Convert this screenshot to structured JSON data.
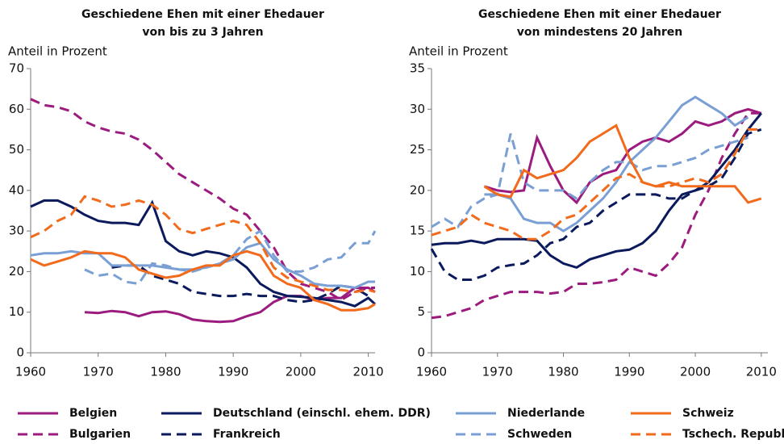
{
  "chart_data": [
    {
      "type": "line",
      "title": [
        "Geschiedene Ehen mit einer Ehedauer",
        "von bis zu 3 Jahren"
      ],
      "y_label": "Anteil  in Prozent",
      "x": [
        1960,
        1962,
        1964,
        1966,
        1968,
        1970,
        1972,
        1974,
        1976,
        1978,
        1980,
        1982,
        1984,
        1986,
        1988,
        1990,
        1992,
        1994,
        1996,
        1998,
        2000,
        2002,
        2004,
        2006,
        2008,
        2010,
        2011
      ],
      "xlim": [
        1960,
        2011
      ],
      "xticks": [
        1960,
        1970,
        1980,
        1990,
        2000,
        2010
      ],
      "ylim": [
        0,
        70
      ],
      "yticks": [
        0,
        10,
        20,
        30,
        40,
        50,
        60,
        70
      ],
      "series": [
        {
          "name": "Belgien",
          "color": "#9b1b7e",
          "style": "solid",
          "values": [
            null,
            null,
            null,
            null,
            10,
            9.8,
            10.3,
            10,
            9,
            10,
            10.2,
            9.5,
            8.2,
            7.8,
            7.6,
            7.8,
            9,
            10,
            12.5,
            14,
            14,
            13,
            13.5,
            13.5,
            16,
            16,
            15
          ]
        },
        {
          "name": "Bulgarien",
          "color": "#9b1b7e",
          "style": "dashed",
          "values": [
            62.5,
            61,
            60.5,
            59.5,
            57,
            55.5,
            54.5,
            54,
            52.5,
            50,
            47,
            44,
            42,
            40,
            38,
            35.5,
            34,
            30,
            26,
            20,
            17,
            16,
            15,
            13,
            15,
            16,
            16
          ]
        },
        {
          "name": "Deutschland (einschl. ehem. DDR)",
          "color": "#0a1a5c",
          "style": "solid",
          "values": [
            36,
            37.5,
            37.5,
            36,
            34,
            32.5,
            32,
            32,
            31.5,
            37,
            27.5,
            25,
            24,
            25,
            24.5,
            23.5,
            21,
            17,
            15,
            14,
            13.8,
            13.5,
            13,
            12.5,
            11.5,
            13.5,
            12
          ]
        },
        {
          "name": "Frankreich",
          "color": "#0a1a5c",
          "style": "dashed",
          "values": [
            null,
            null,
            null,
            null,
            null,
            null,
            21,
            21.5,
            21.5,
            19,
            18,
            17,
            15,
            14.5,
            14,
            14,
            14.5,
            14,
            14,
            13,
            12.5,
            13,
            14.5,
            16.5,
            16,
            14,
            null
          ]
        },
        {
          "name": "Niederlande",
          "color": "#7a9fd4",
          "style": "solid",
          "values": [
            24,
            24.5,
            24.5,
            25,
            24.5,
            24.5,
            21.5,
            21.5,
            21.5,
            21.5,
            21,
            20.5,
            20.5,
            21,
            22,
            23,
            26,
            27,
            23,
            20.5,
            19,
            17,
            16.5,
            16.5,
            16,
            17.5,
            17.5
          ]
        },
        {
          "name": "Schweden",
          "color": "#7a9fd4",
          "style": "dashed",
          "values": [
            null,
            null,
            null,
            null,
            20.5,
            19,
            19.5,
            17.5,
            17,
            22,
            21.5,
            20.5,
            20,
            21,
            22,
            24,
            28,
            30,
            24,
            20,
            20,
            21,
            23,
            23.5,
            27,
            27,
            30
          ]
        },
        {
          "name": "Schweiz",
          "color": "#f26a1b",
          "style": "solid",
          "values": [
            23,
            21.5,
            22.5,
            23.5,
            25,
            24.5,
            24.5,
            23.5,
            20.5,
            19.5,
            18.5,
            19,
            20.5,
            21.5,
            21.5,
            24,
            25,
            24,
            19,
            17,
            16,
            13,
            12,
            10.5,
            10.5,
            11,
            12
          ]
        },
        {
          "name": "Tschech. Republik",
          "color": "#f26a1b",
          "style": "dashed",
          "values": [
            28.5,
            30,
            32.5,
            34,
            38.5,
            37.5,
            36,
            36.5,
            37.5,
            36.5,
            34,
            30.5,
            29.5,
            30.5,
            31.5,
            32.5,
            31.5,
            27,
            21,
            18.5,
            17.5,
            16.5,
            15.5,
            15.5,
            15,
            15.5,
            15
          ]
        }
      ]
    },
    {
      "type": "line",
      "title": [
        "Geschiedene Ehen mit einer Ehedauer",
        "von mindestens 20 Jahren"
      ],
      "y_label": "Anteil  in Prozent",
      "x": [
        1960,
        1962,
        1964,
        1966,
        1968,
        1970,
        1972,
        1974,
        1976,
        1978,
        1980,
        1982,
        1984,
        1986,
        1988,
        1990,
        1992,
        1994,
        1996,
        1998,
        2000,
        2002,
        2004,
        2006,
        2008,
        2010
      ],
      "xlim": [
        1960,
        2011
      ],
      "xticks": [
        1960,
        1970,
        1980,
        1990,
        2000,
        2010
      ],
      "ylim": [
        0,
        35
      ],
      "yticks": [
        0,
        5,
        10,
        15,
        20,
        25,
        30,
        35
      ],
      "series": [
        {
          "name": "Belgien",
          "color": "#9b1b7e",
          "style": "solid",
          "values": [
            null,
            null,
            null,
            null,
            20.5,
            20,
            19.8,
            20,
            26.5,
            23,
            20,
            18.5,
            21,
            22,
            22.5,
            25,
            26,
            26.5,
            26,
            27,
            28.5,
            28,
            28.5,
            29.5,
            30,
            29.5
          ]
        },
        {
          "name": "Bulgarien",
          "color": "#9b1b7e",
          "style": "dashed",
          "values": [
            4.3,
            4.5,
            5,
            5.5,
            6.5,
            7,
            7.5,
            7.5,
            7.5,
            7.3,
            7.5,
            8.5,
            8.5,
            8.7,
            9,
            10.5,
            10,
            9.5,
            11,
            13,
            17,
            20,
            24,
            27,
            29.5,
            29.5
          ]
        },
        {
          "name": "Deutschland (einschl. ehem. DDR)",
          "color": "#0a1a5c",
          "style": "solid",
          "values": [
            13.3,
            13.5,
            13.5,
            13.8,
            13.5,
            14,
            14,
            14,
            13.8,
            12,
            11,
            10.5,
            11.5,
            12,
            12.5,
            12.7,
            13.5,
            15,
            17.5,
            19.5,
            20,
            21,
            23,
            25,
            27.5,
            29.5
          ]
        },
        {
          "name": "Frankreich",
          "color": "#0a1a5c",
          "style": "dashed",
          "values": [
            12.8,
            10,
            9,
            9,
            9.5,
            10.5,
            10.8,
            11,
            12,
            13.5,
            14,
            15.5,
            16,
            17.5,
            18.5,
            19.5,
            19.5,
            19.5,
            19,
            19,
            20,
            20.5,
            21.5,
            24,
            27,
            27.5
          ]
        },
        {
          "name": "Niederlande",
          "color": "#7a9fd4",
          "style": "solid",
          "values": [
            null,
            null,
            null,
            null,
            19.5,
            19.5,
            19,
            16.5,
            16,
            16,
            15,
            16,
            17.5,
            19,
            21,
            23.5,
            25,
            26.5,
            28.5,
            30.5,
            31.5,
            30.5,
            29.5,
            28,
            29,
            null
          ]
        },
        {
          "name": "Schweden",
          "color": "#7a9fd4",
          "style": "dashed",
          "values": [
            15.5,
            16.5,
            15.5,
            18,
            19,
            19.5,
            27,
            21,
            20,
            20,
            20,
            19,
            21,
            22.5,
            23.5,
            23.5,
            22.5,
            23,
            23,
            23.5,
            24,
            25,
            25.5,
            26,
            26.5,
            null
          ]
        },
        {
          "name": "Schweiz",
          "color": "#f26a1b",
          "style": "solid",
          "values": [
            null,
            null,
            null,
            null,
            20.5,
            19.5,
            19.2,
            22.5,
            21.5,
            22,
            22.5,
            24,
            26,
            27,
            28,
            24,
            21,
            20.5,
            21,
            20.5,
            20.5,
            20.5,
            20.5,
            20.5,
            18.5,
            19
          ]
        },
        {
          "name": "Tschech. Republik",
          "color": "#f26a1b",
          "style": "dashed",
          "values": [
            14.5,
            15,
            15.5,
            17,
            16,
            15.5,
            15,
            14,
            14,
            15,
            16.5,
            17,
            18.5,
            20,
            21.5,
            22,
            21,
            20.5,
            20.5,
            21,
            21.5,
            21,
            22,
            24.5,
            27.5,
            27.5
          ]
        }
      ]
    }
  ]
}
